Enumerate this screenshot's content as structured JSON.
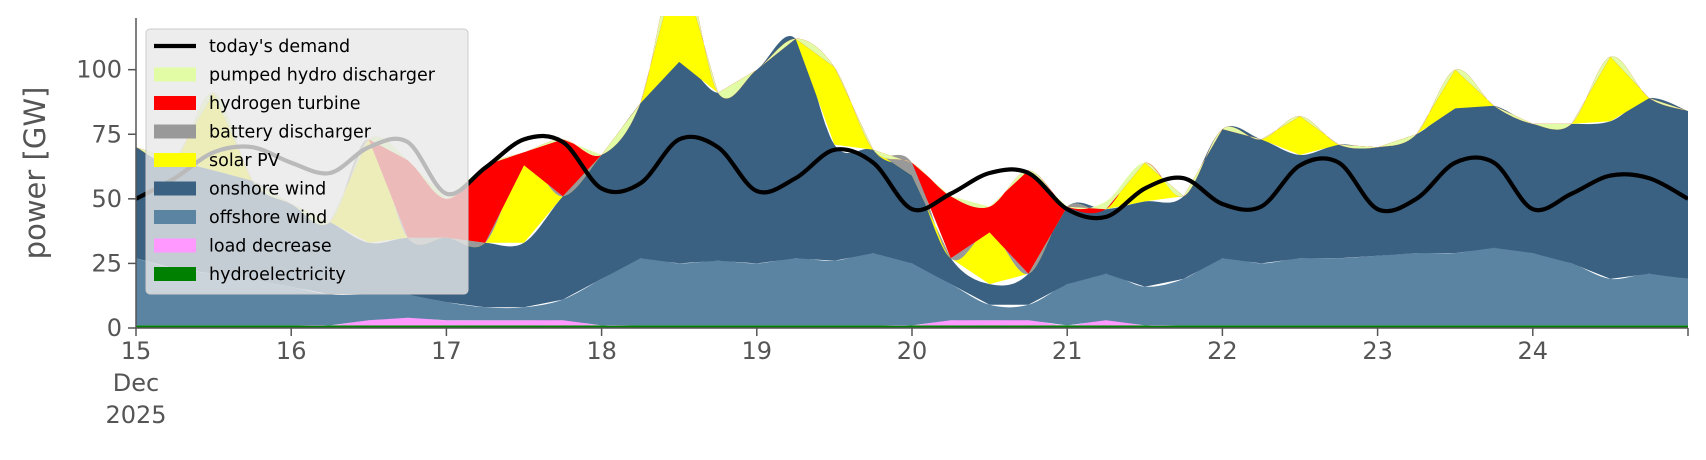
{
  "chart_data": {
    "type": "area",
    "title": "",
    "xlabel": "",
    "ylabel": "power [GW]",
    "ylim": [
      0,
      120
    ],
    "xlim": [
      "2025-12-15T00:00",
      "2025-12-25T00:00"
    ],
    "yticks": [
      0,
      25,
      50,
      75,
      100
    ],
    "ytick_labels": [
      "0",
      "25",
      "50",
      "75",
      "100"
    ],
    "xticks": [
      "2025-12-15",
      "2025-12-16",
      "2025-12-17",
      "2025-12-18",
      "2025-12-19",
      "2025-12-20",
      "2025-12-21",
      "2025-12-22",
      "2025-12-23",
      "2025-12-24"
    ],
    "xtick_labels": [
      [
        "15",
        "Dec",
        "2025"
      ],
      [
        "16"
      ],
      [
        "17"
      ],
      [
        "18"
      ],
      [
        "19"
      ],
      [
        "20"
      ],
      [
        "21"
      ],
      [
        "22"
      ],
      [
        "23"
      ],
      [
        "24"
      ]
    ],
    "grid": false,
    "legend_placement": "upper-left",
    "legend": [
      {
        "label": "today's demand",
        "kind": "line",
        "color": "#000000"
      },
      {
        "label": "pumped hydro discharger",
        "kind": "patch",
        "color": "#e2fca5"
      },
      {
        "label": "hydrogen turbine",
        "kind": "patch",
        "color": "#ff0000"
      },
      {
        "label": "battery discharger",
        "kind": "patch",
        "color": "#999999"
      },
      {
        "label": "solar PV",
        "kind": "patch",
        "color": "#ffff00"
      },
      {
        "label": "onshore wind",
        "kind": "patch",
        "color": "#3b6182"
      },
      {
        "label": "offshore wind",
        "kind": "patch",
        "color": "#5b84a3"
      },
      {
        "label": "load decrease",
        "kind": "patch",
        "color": "#ff99ff"
      },
      {
        "label": "hydroelectricity",
        "kind": "patch",
        "color": "#008000"
      }
    ],
    "x": [
      "2025-12-15T00:00",
      "2025-12-15T06:00",
      "2025-12-15T12:00",
      "2025-12-15T18:00",
      "2025-12-16T00:00",
      "2025-12-16T06:00",
      "2025-12-16T12:00",
      "2025-12-16T18:00",
      "2025-12-17T00:00",
      "2025-12-17T06:00",
      "2025-12-17T12:00",
      "2025-12-17T18:00",
      "2025-12-18T00:00",
      "2025-12-18T06:00",
      "2025-12-18T12:00",
      "2025-12-18T18:00",
      "2025-12-19T00:00",
      "2025-12-19T06:00",
      "2025-12-19T12:00",
      "2025-12-19T18:00",
      "2025-12-20T00:00",
      "2025-12-20T06:00",
      "2025-12-20T12:00",
      "2025-12-20T18:00",
      "2025-12-21T00:00",
      "2025-12-21T06:00",
      "2025-12-21T12:00",
      "2025-12-21T18:00",
      "2025-12-22T00:00",
      "2025-12-22T06:00",
      "2025-12-22T12:00",
      "2025-12-22T18:00",
      "2025-12-23T00:00",
      "2025-12-23T06:00",
      "2025-12-23T12:00",
      "2025-12-23T18:00",
      "2025-12-24T00:00",
      "2025-12-24T06:00",
      "2025-12-24T12:00",
      "2025-12-24T18:00",
      "2025-12-25T00:00"
    ],
    "demand": [
      50,
      58,
      68,
      70,
      64,
      60,
      70,
      72,
      52,
      62,
      73,
      72,
      54,
      56,
      73,
      70,
      53,
      58,
      69,
      64,
      46,
      52,
      60,
      60,
      46,
      43,
      54,
      58,
      48,
      47,
      63,
      64,
      46,
      50,
      64,
      64,
      46,
      52,
      59,
      58,
      50
    ],
    "series": [
      {
        "name": "hydroelectricity",
        "color": "#008000",
        "values": [
          1,
          1,
          1,
          1,
          1,
          1,
          1,
          1,
          1,
          1,
          1,
          1,
          1,
          1,
          1,
          1,
          1,
          1,
          1,
          1,
          1,
          1,
          1,
          1,
          1,
          1,
          1,
          1,
          1,
          1,
          1,
          1,
          1,
          1,
          1,
          1,
          1,
          1,
          1,
          1,
          1
        ]
      },
      {
        "name": "load decrease",
        "color": "#ff99ff",
        "values": [
          0,
          0,
          0,
          0,
          0,
          0,
          2,
          3,
          2,
          2,
          2,
          2,
          0,
          0,
          0,
          0,
          0,
          0,
          0,
          0,
          0,
          2,
          2,
          2,
          0,
          2,
          0,
          0,
          0,
          0,
          0,
          0,
          0,
          0,
          0,
          0,
          0,
          0,
          0,
          0,
          0
        ]
      },
      {
        "name": "offshore wind",
        "color": "#5b84a3",
        "values": [
          26,
          22,
          20,
          18,
          15,
          12,
          10,
          9,
          7,
          5,
          5,
          8,
          18,
          26,
          24,
          25,
          24,
          26,
          25,
          28,
          24,
          14,
          6,
          6,
          16,
          18,
          15,
          18,
          26,
          24,
          26,
          26,
          27,
          28,
          28,
          30,
          28,
          24,
          18,
          20,
          18
        ]
      },
      {
        "name": "onshore wind",
        "color": "#3b6182",
        "values": [
          43,
          42,
          40,
          38,
          32,
          28,
          20,
          22,
          25,
          25,
          25,
          40,
          48,
          60,
          78,
          65,
          75,
          85,
          45,
          40,
          34,
          10,
          8,
          12,
          30,
          25,
          33,
          32,
          50,
          48,
          40,
          44,
          42,
          46,
          56,
          55,
          50,
          54,
          61,
          68,
          65
        ]
      },
      {
        "name": "solar PV",
        "color": "#ffff00",
        "values": [
          0,
          0,
          30,
          0,
          0,
          0,
          40,
          0,
          0,
          0,
          30,
          0,
          0,
          0,
          40,
          0,
          0,
          0,
          30,
          0,
          0,
          0,
          20,
          0,
          0,
          0,
          15,
          0,
          0,
          0,
          15,
          0,
          0,
          0,
          15,
          0,
          0,
          0,
          25,
          0,
          0
        ]
      },
      {
        "name": "battery discharger",
        "color": "#999999",
        "values": [
          0,
          0,
          0,
          0,
          0,
          0,
          0,
          0,
          0,
          0,
          0,
          0,
          0,
          0,
          0,
          0,
          0,
          0,
          0,
          0,
          5,
          0,
          0,
          0,
          0,
          0,
          0,
          0,
          0,
          0,
          0,
          0,
          0,
          0,
          0,
          0,
          0,
          0,
          0,
          0,
          0
        ]
      },
      {
        "name": "hydrogen turbine",
        "color": "#ff0000",
        "values": [
          0,
          0,
          0,
          0,
          0,
          0,
          0,
          30,
          15,
          30,
          5,
          22,
          0,
          0,
          0,
          0,
          0,
          0,
          0,
          0,
          0,
          24,
          10,
          40,
          0,
          0,
          0,
          0,
          0,
          0,
          0,
          0,
          0,
          0,
          0,
          0,
          0,
          0,
          0,
          0,
          0
        ]
      },
      {
        "name": "pumped hydro discharger",
        "color": "#e2fca5",
        "values": [
          0,
          0,
          0,
          0,
          0,
          0,
          0,
          0,
          0,
          0,
          0,
          0,
          0,
          0,
          0,
          0,
          0,
          0,
          0,
          0,
          0,
          0,
          0,
          0,
          0,
          3,
          0,
          0,
          0,
          0,
          0,
          0,
          0,
          0,
          0,
          0,
          0,
          0,
          0,
          0,
          0
        ]
      }
    ]
  }
}
